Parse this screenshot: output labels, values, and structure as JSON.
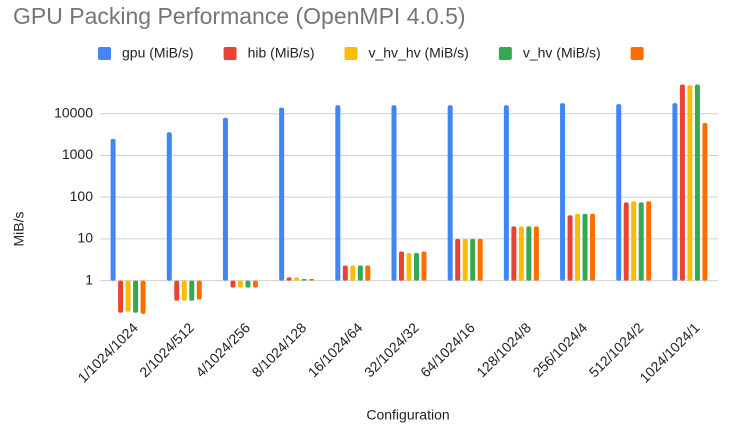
{
  "chart_data": {
    "type": "bar",
    "title": "GPU Packing Performance (OpenMPI 4.0.5)",
    "x_label": "Configuration",
    "y_label": "MiB/s",
    "categories": [
      "1/1024/1024",
      "2/1024/512",
      "4/1024/256",
      "8/1024/128",
      "16/1024/64",
      "32/1024/32",
      "64/1024/16",
      "128/1024/8",
      "256/1024/4",
      "512/1024/2",
      "1024/1024/1"
    ],
    "series": [
      {
        "name": "gpu (MiB/s)",
        "color": "#4285f4",
        "values": [
          2500,
          3600,
          8000,
          14000,
          16000,
          16000,
          16000,
          16000,
          18000,
          17000,
          18000
        ]
      },
      {
        "name": "hib (MiB/s)",
        "color": "#ea4335",
        "values": [
          0.17,
          0.33,
          0.68,
          1.2,
          2.3,
          5,
          10,
          20,
          37,
          75,
          50000
        ]
      },
      {
        "name": "v_hv_hv (MiB/s)",
        "color": "#fbbc04",
        "values": [
          0.18,
          0.33,
          0.68,
          1.2,
          2.3,
          4.6,
          10,
          20,
          40,
          80,
          48000
        ]
      },
      {
        "name": "v_hv (MiB/s)",
        "color": "#34a853",
        "values": [
          0.17,
          0.33,
          0.68,
          1.1,
          2.3,
          4.6,
          10,
          20,
          40,
          75,
          50000
        ]
      },
      {
        "color": "#ff6d01",
        "values": [
          0.16,
          0.35,
          0.68,
          1.1,
          2.3,
          5,
          10,
          20,
          40,
          80,
          6000
        ]
      }
    ],
    "log_scale": true,
    "ylim": [
      0.15,
      100000
    ],
    "yticks": [
      1,
      10,
      100,
      1000,
      10000
    ],
    "grid": true
  }
}
